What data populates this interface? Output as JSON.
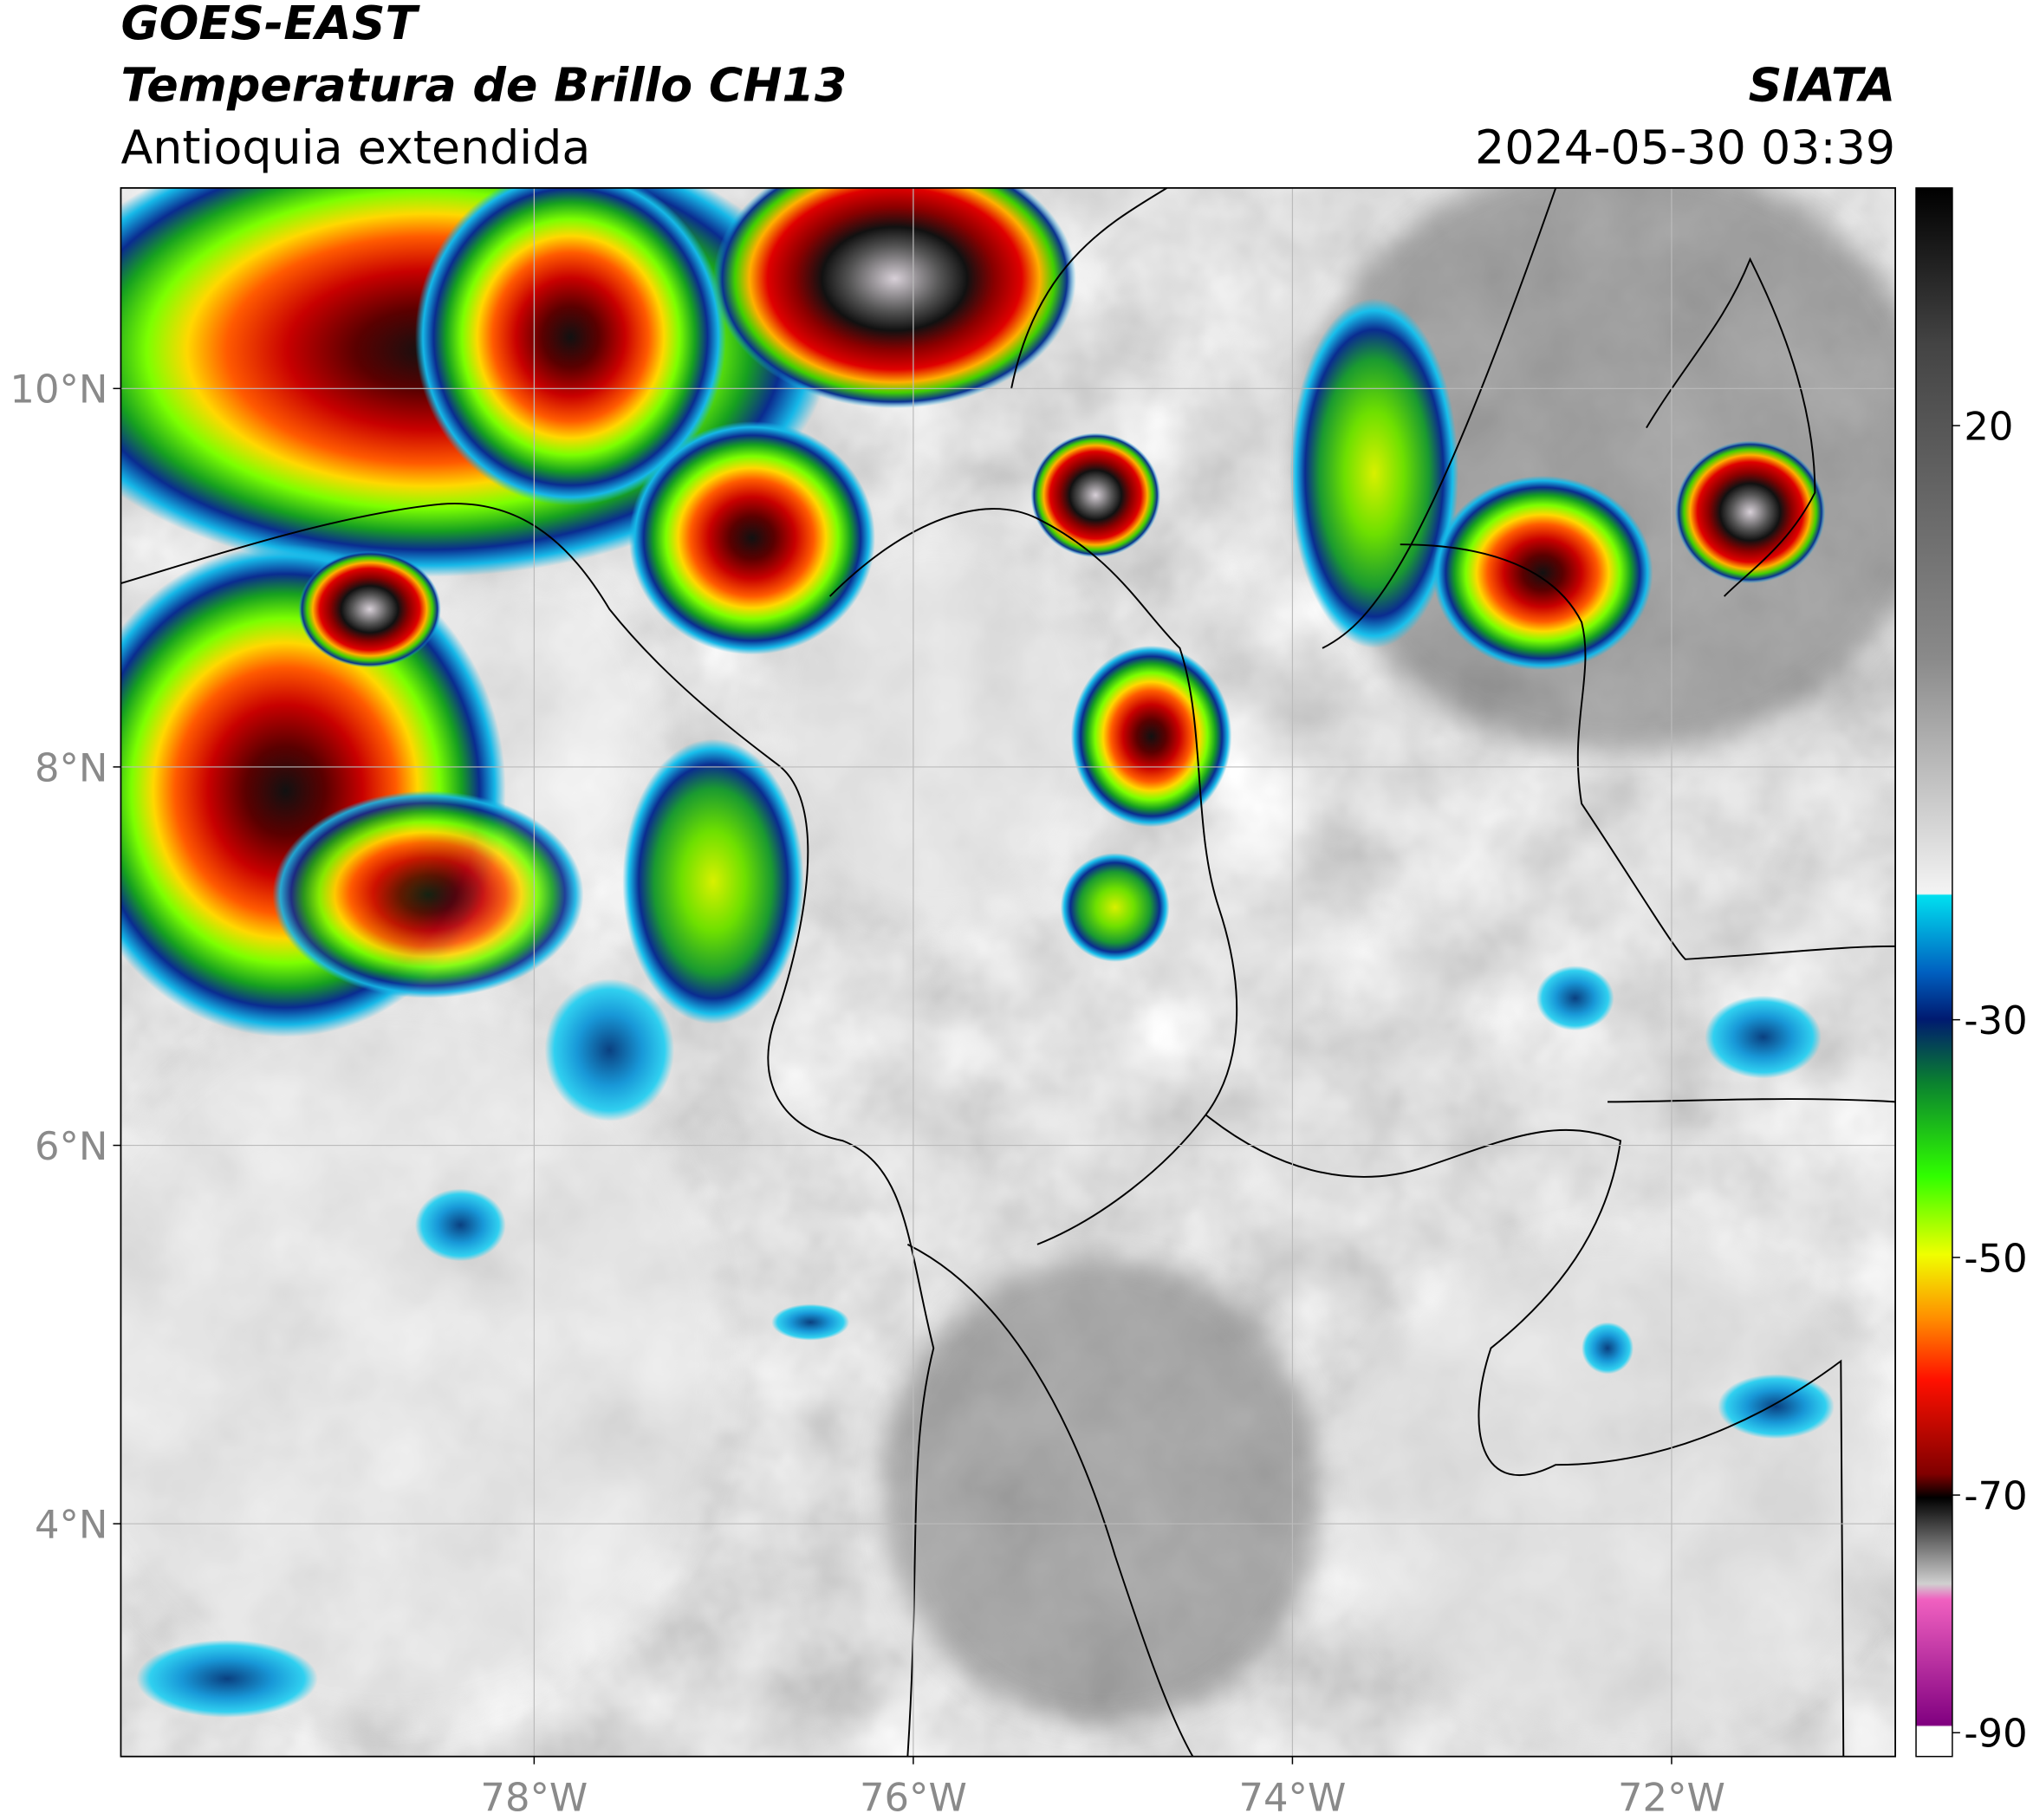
{
  "header": {
    "title": "GOES-EAST",
    "subtitle": "Temperatura de Brillo CH13",
    "region": "Antioquia extendida",
    "source": "SIATA",
    "datetime": "2024-05-30 03:39"
  },
  "map": {
    "lonlim": [
      -80.18,
      -70.82
    ],
    "latlim": [
      2.77,
      11.06
    ],
    "lon_ticks": [
      {
        "value": -78,
        "label": "78°W"
      },
      {
        "value": -76,
        "label": "76°W"
      },
      {
        "value": -74,
        "label": "74°W"
      },
      {
        "value": -72,
        "label": "72°W"
      }
    ],
    "lat_ticks": [
      {
        "value": 10,
        "label": "10°N"
      },
      {
        "value": 8,
        "label": "8°N"
      },
      {
        "value": 6,
        "label": "6°N"
      },
      {
        "value": 4,
        "label": "4°N"
      }
    ]
  },
  "colorbar": {
    "lim": [
      -92,
      40
    ],
    "ticks": [
      20,
      -30,
      -50,
      -70,
      -90
    ]
  }
}
